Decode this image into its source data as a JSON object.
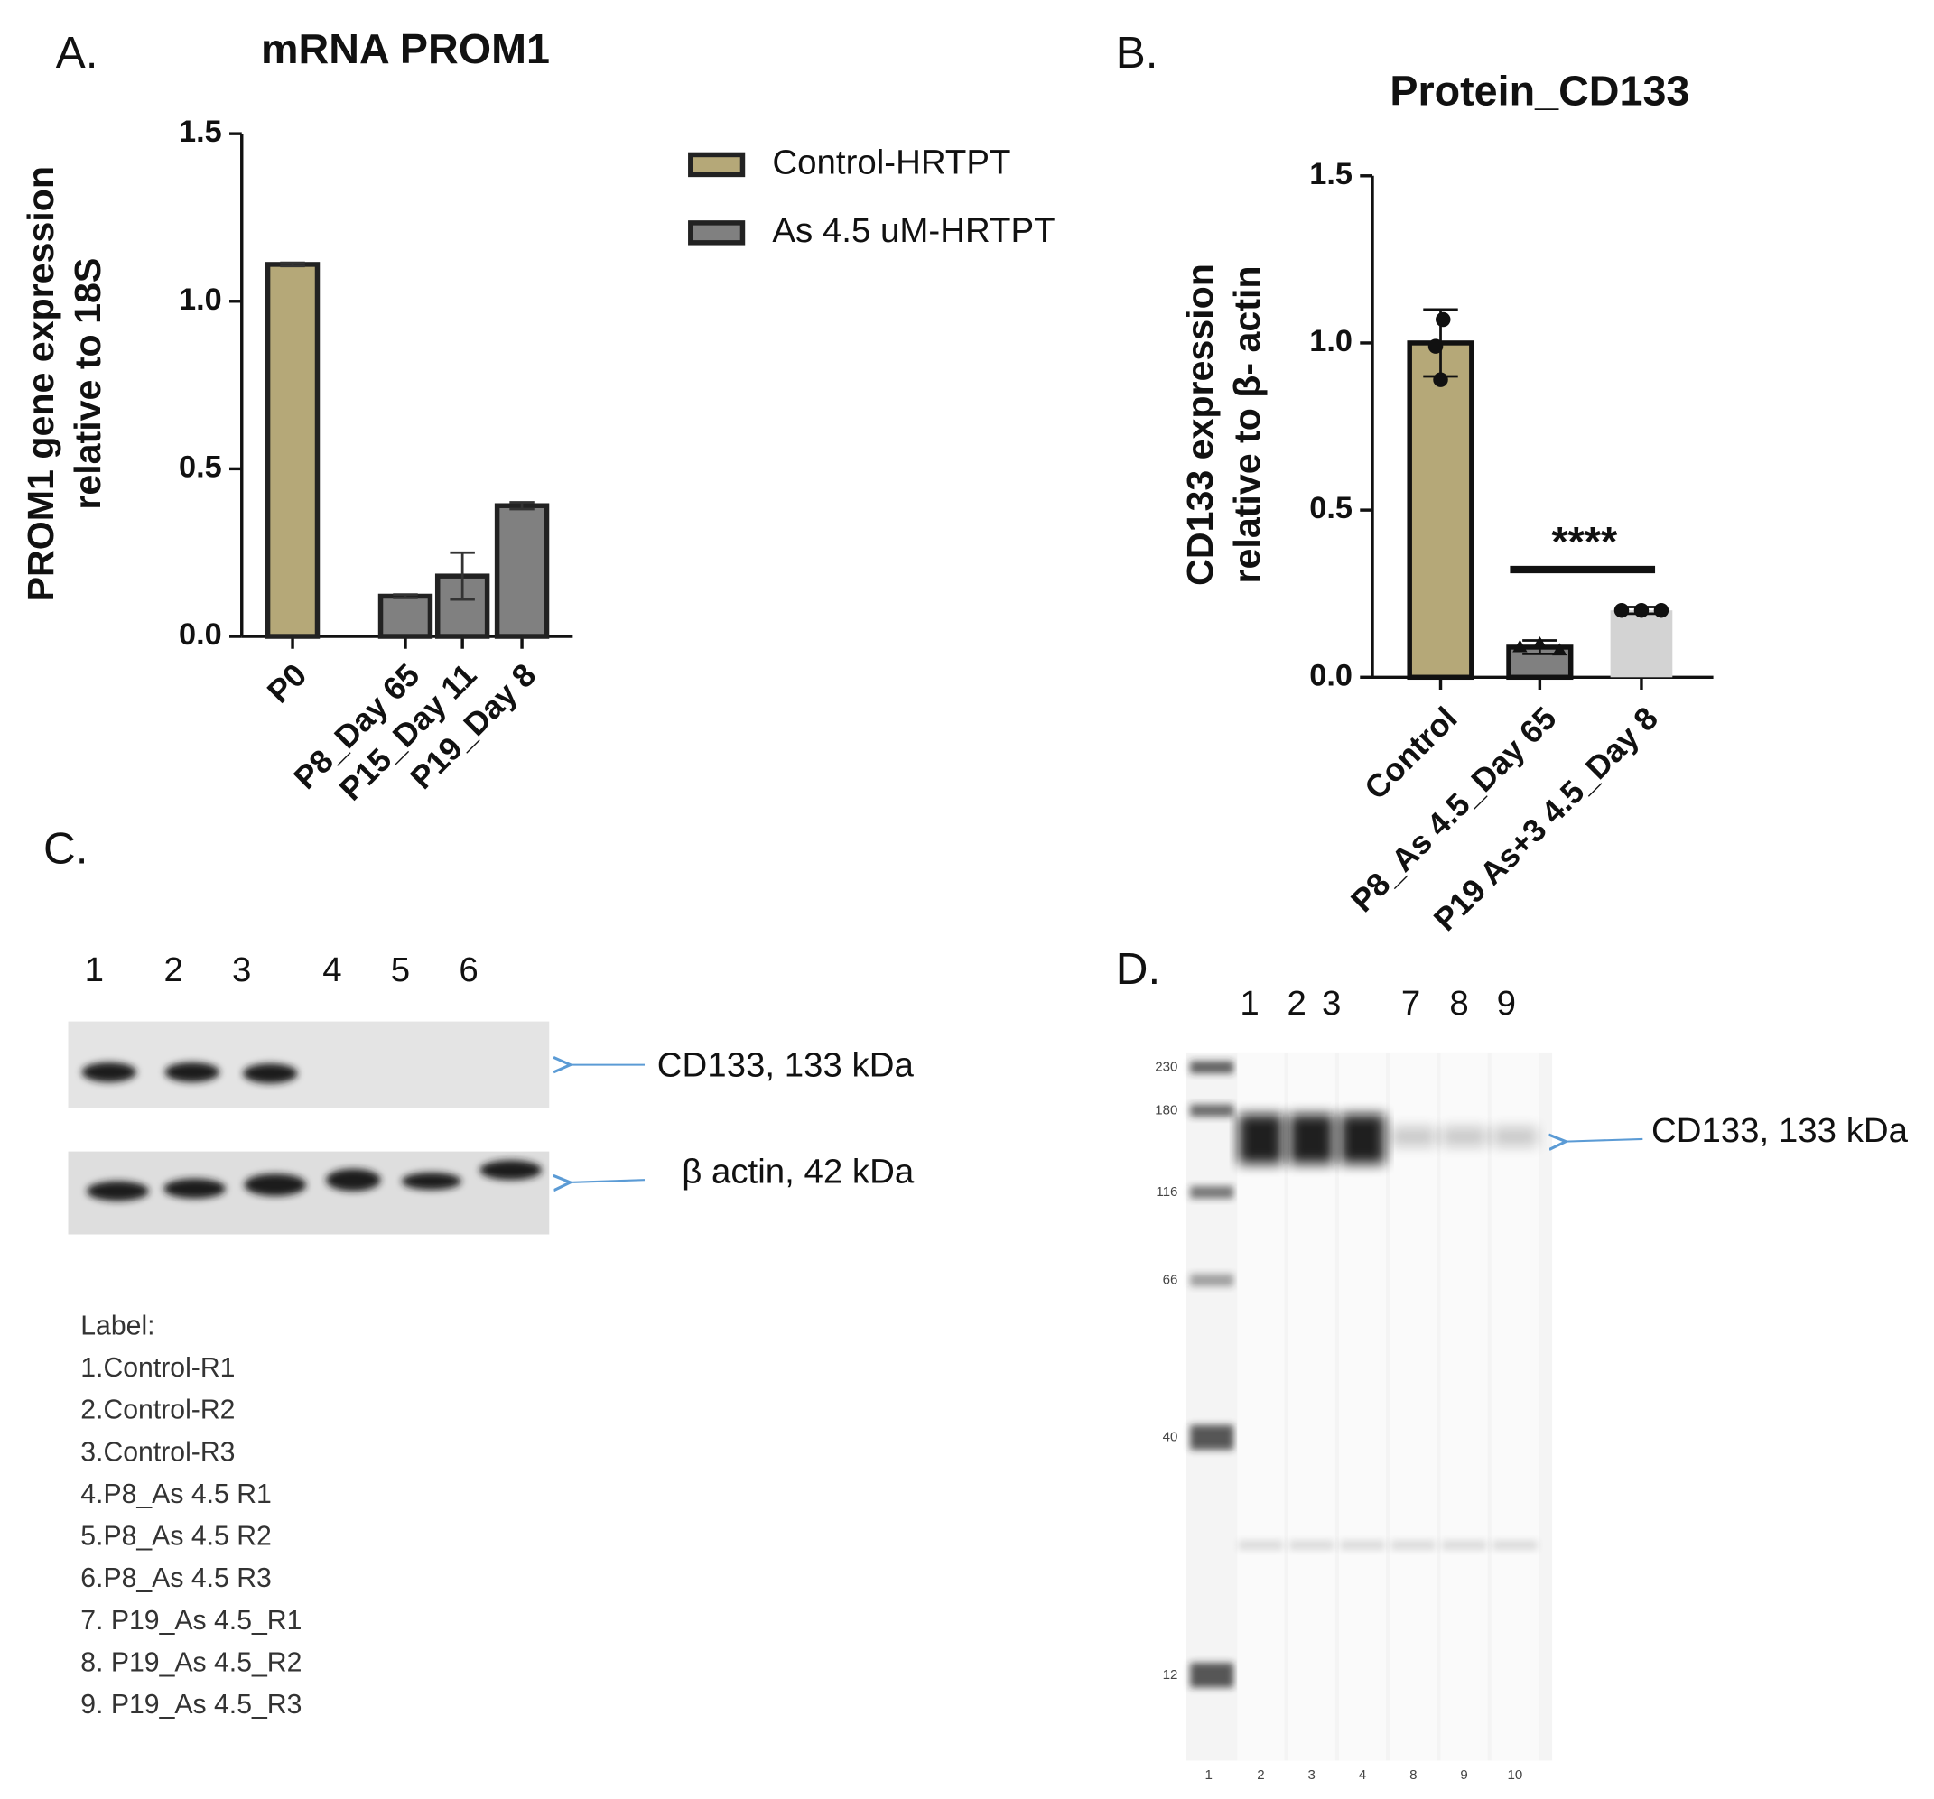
{
  "chart_data": [
    {
      "type": "bar",
      "panel": "A.",
      "title": "mRNA PROM1",
      "ylabel": [
        "PROM1 gene expression",
        "relative to 18S"
      ],
      "categories": [
        "P0",
        "P8_Day 65",
        "P15_Day 11",
        "P19_Day 8"
      ],
      "series": [
        {
          "name": "Control-HRTPT",
          "color": "#b5a878",
          "values": [
            1.11,
            null,
            null,
            null
          ],
          "errors": [
            0.005,
            null,
            null,
            null
          ]
        },
        {
          "name": "As 4.5 uM-HRTPT",
          "color": "#808080",
          "values": [
            null,
            0.12,
            0.18,
            0.39
          ],
          "errors": [
            null,
            0.005,
            0.07,
            0.01
          ]
        }
      ],
      "ylim": [
        0,
        1.5
      ],
      "yticks": [
        {
          "value": 0,
          "label": "0.0"
        },
        0.5,
        {
          "value": 1,
          "label": "1.0"
        },
        1.5
      ],
      "legend": "right"
    },
    {
      "type": "bar",
      "panel": "B.",
      "title": "Protein_CD133",
      "ylabel": [
        "CD133 expression",
        "relative to β- actin"
      ],
      "categories": [
        "Control",
        "P8_As 4.5_Day 65",
        "P19 As+3 4.5_Day 8"
      ],
      "values": [
        1.0,
        0.09,
        0.2
      ],
      "colors": [
        "#b5a878",
        "#808080",
        "#d3d3d3"
      ],
      "errors": [
        0.1,
        0.02,
        0.01
      ],
      "points": [
        [
          1.07,
          0.99,
          0.89
        ],
        [
          0.09,
          0.1,
          0.08
        ],
        [
          0.2,
          0.2,
          0.2
        ]
      ],
      "annotation": "****",
      "ylim": [
        0,
        1.5
      ],
      "yticks": [
        {
          "value": 0,
          "label": "0.0"
        },
        0.5,
        {
          "value": 1,
          "label": "1.0"
        },
        1.5
      ]
    }
  ],
  "blot_c": {
    "panel": "C.",
    "lanes": [
      "1",
      "2",
      "3",
      "4",
      "5",
      "6"
    ],
    "bands": [
      "CD133, 133 kDa",
      "β actin, 42 kDa"
    ],
    "legend_title": "Label:",
    "legend": [
      "1.Control-R1",
      "2.Control-R2",
      "3.Control-R3",
      "4.P8_As 4.5 R1",
      "5.P8_As 4.5 R2",
      "6.P8_As 4.5 R3",
      "7. P19_As 4.5_R1",
      "8. P19_As 4.5_R2",
      "9. P19_As 4.5_R3"
    ]
  },
  "blot_d": {
    "panel": "D.",
    "lanes": [
      "1",
      "2",
      "3",
      "7",
      "8",
      "9"
    ],
    "band": "CD133, 133 kDa",
    "markers": [
      "230",
      "180",
      "116",
      "66",
      "40",
      "12"
    ],
    "lane_numbers": [
      "1",
      "2",
      "3",
      "4",
      "8",
      "9",
      "10"
    ]
  }
}
